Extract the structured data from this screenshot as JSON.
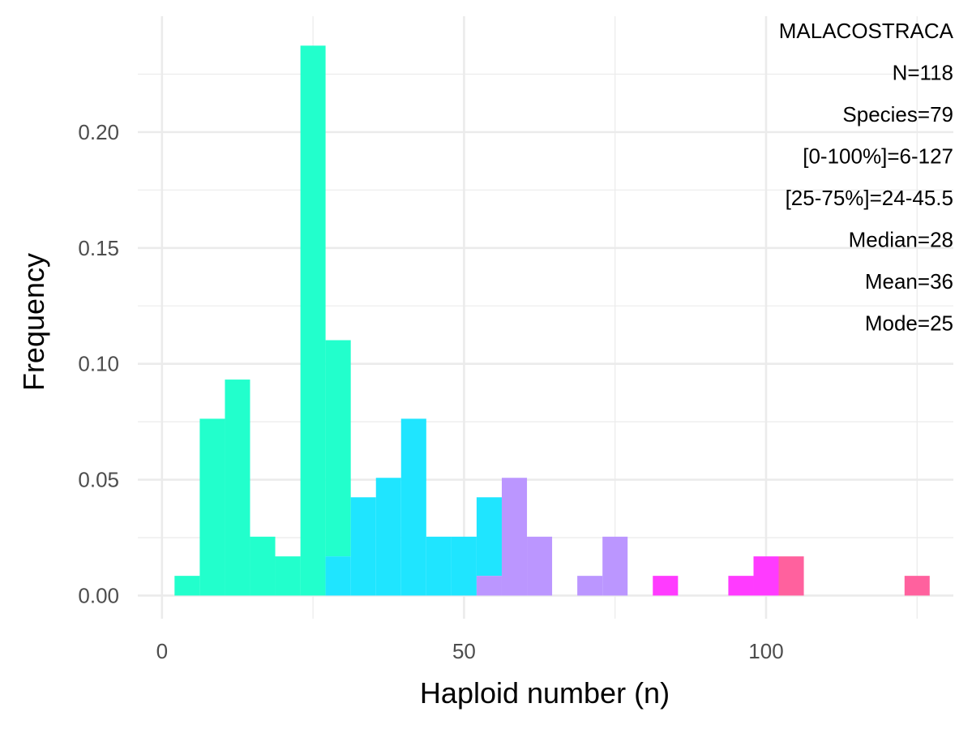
{
  "chart_data": {
    "type": "bar",
    "xlabel": "Haploid number (n)",
    "ylabel": "Frequency",
    "xlim": [
      -4,
      131
    ],
    "ylim": [
      -0.01,
      0.25
    ],
    "x_ticks": [
      0,
      50,
      100
    ],
    "y_ticks": [
      0.0,
      0.05,
      0.1,
      0.15,
      0.2
    ],
    "x_tick_labels": [
      "0",
      "50",
      "100"
    ],
    "y_tick_labels": [
      "0.00",
      "0.05",
      "0.10",
      "0.15",
      "0.20"
    ],
    "grid": true,
    "bin_width": 4.17,
    "series": [
      {
        "color": "#22FFCC",
        "bars": [
          {
            "x0": 2.08,
            "x1": 6.25,
            "y0": 0,
            "y1": 0.0085
          },
          {
            "x0": 6.25,
            "x1": 10.42,
            "y0": 0,
            "y1": 0.0763
          },
          {
            "x0": 10.42,
            "x1": 14.58,
            "y0": 0,
            "y1": 0.0932
          },
          {
            "x0": 14.58,
            "x1": 18.75,
            "y0": 0,
            "y1": 0.0254
          },
          {
            "x0": 18.75,
            "x1": 22.92,
            "y0": 0,
            "y1": 0.0169
          },
          {
            "x0": 22.92,
            "x1": 27.08,
            "y0": 0,
            "y1": 0.2373
          },
          {
            "x0": 27.08,
            "x1": 31.25,
            "y0": 0.0169,
            "y1": 0.1102
          }
        ]
      },
      {
        "color": "#1FE5FF",
        "bars": [
          {
            "x0": 27.08,
            "x1": 31.25,
            "y0": 0,
            "y1": 0.0169
          },
          {
            "x0": 31.25,
            "x1": 35.42,
            "y0": 0,
            "y1": 0.0424
          },
          {
            "x0": 35.42,
            "x1": 39.58,
            "y0": 0,
            "y1": 0.0508
          },
          {
            "x0": 39.58,
            "x1": 43.75,
            "y0": 0,
            "y1": 0.0763
          },
          {
            "x0": 43.75,
            "x1": 47.92,
            "y0": 0,
            "y1": 0.0254
          },
          {
            "x0": 47.92,
            "x1": 52.08,
            "y0": 0,
            "y1": 0.0254
          },
          {
            "x0": 52.08,
            "x1": 56.25,
            "y0": 0.0085,
            "y1": 0.0424
          }
        ]
      },
      {
        "color": "#BB96FF",
        "bars": [
          {
            "x0": 52.08,
            "x1": 56.25,
            "y0": 0,
            "y1": 0.0085
          },
          {
            "x0": 56.25,
            "x1": 60.42,
            "y0": 0,
            "y1": 0.0508
          },
          {
            "x0": 60.42,
            "x1": 64.58,
            "y0": 0,
            "y1": 0.0254
          },
          {
            "x0": 68.75,
            "x1": 72.92,
            "y0": 0,
            "y1": 0.0085
          },
          {
            "x0": 72.92,
            "x1": 77.08,
            "y0": 0,
            "y1": 0.0254
          }
        ]
      },
      {
        "color": "#FF3BFF",
        "bars": [
          {
            "x0": 81.25,
            "x1": 85.42,
            "y0": 0,
            "y1": 0.0085
          },
          {
            "x0": 93.75,
            "x1": 97.92,
            "y0": 0,
            "y1": 0.0085
          },
          {
            "x0": 97.92,
            "x1": 102.08,
            "y0": 0,
            "y1": 0.0169
          }
        ]
      },
      {
        "color": "#FF619E",
        "bars": [
          {
            "x0": 102.08,
            "x1": 106.25,
            "y0": 0,
            "y1": 0.0169
          },
          {
            "x0": 122.92,
            "x1": 127.08,
            "y0": 0,
            "y1": 0.0085
          }
        ]
      }
    ],
    "annotations": [
      "MALACOSTRACA",
      "N=118",
      "Species=79",
      "[0-100%]=6-127",
      "[25-75%]=24-45.5",
      "Median=28",
      "Mean=36",
      "Mode=25"
    ]
  }
}
